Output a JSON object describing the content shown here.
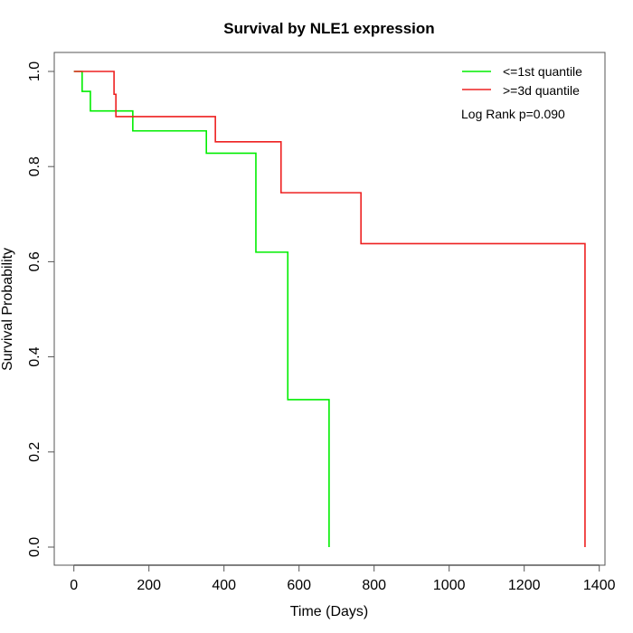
{
  "chart_data": {
    "type": "line",
    "title": "Survival by NLE1 expression",
    "xlabel": "Time (Days)",
    "ylabel": "Survival Probability",
    "xlim": [
      0,
      1400
    ],
    "ylim": [
      0,
      1
    ],
    "xticks": [
      0,
      200,
      400,
      600,
      800,
      1000,
      1200,
      1400
    ],
    "xtick_labels": [
      "0",
      "200",
      "400",
      "600",
      "800",
      "1000",
      "1200",
      "1400"
    ],
    "yticks": [
      0,
      0.2,
      0.4,
      0.6,
      0.8,
      1.0
    ],
    "ytick_labels": [
      "0.0",
      "0.2",
      "0.4",
      "0.6",
      "0.8",
      "1.0"
    ],
    "grid": false,
    "legend_position": "top-right",
    "annotation": "Log Rank p=0.090",
    "series": [
      {
        "name": "<=1st quantile",
        "color": "#00ee00",
        "step": true,
        "x": [
          0,
          22,
          44,
          157,
          353,
          485,
          570,
          680
        ],
        "y": [
          1.0,
          0.958,
          0.917,
          0.875,
          0.828,
          0.62,
          0.31,
          0.0
        ]
      },
      {
        "name": ">=3d quantile",
        "color": "#ee2020",
        "step": true,
        "x": [
          0,
          107,
          112,
          377,
          552,
          765,
          1362
        ],
        "y": [
          1.0,
          0.952,
          0.905,
          0.852,
          0.745,
          0.638,
          0.0
        ]
      }
    ]
  }
}
